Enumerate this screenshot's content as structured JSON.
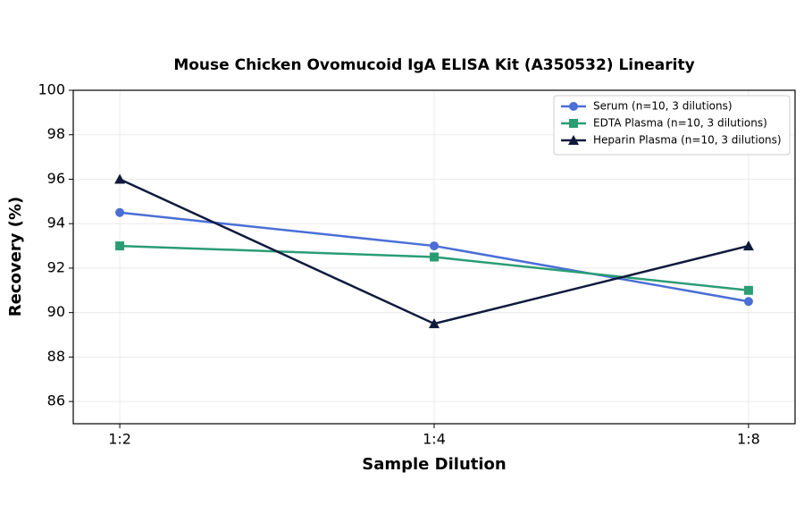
{
  "chart_data": {
    "type": "line",
    "title": "Mouse Chicken Ovomucoid IgA ELISA Kit (A350532) Linearity",
    "x_label": "Sample Dilution",
    "y_label": "Recovery (%)",
    "categories": [
      "1:2",
      "1:4",
      "1:8"
    ],
    "series": [
      {
        "name": "Serum (n=10, 3 dilutions)",
        "color": "#4b6fd6",
        "marker": "circle",
        "values": [
          94.5,
          93,
          90.5
        ]
      },
      {
        "name": "EDTA Plasma (n=10, 3 dilutions)",
        "color": "#2a9d74",
        "marker": "square",
        "values": [
          93,
          92.5,
          91
        ]
      },
      {
        "name": "Heparin Plasma (n=10, 3 dilutions)",
        "color": "#0f1a3d",
        "marker": "triangle",
        "values": [
          96,
          89.5,
          93
        ]
      }
    ],
    "ylim": [
      85,
      100
    ],
    "yticks": [
      86,
      88,
      90,
      92,
      94,
      96,
      98,
      100
    ],
    "grid": true,
    "legend": "upper-right"
  }
}
